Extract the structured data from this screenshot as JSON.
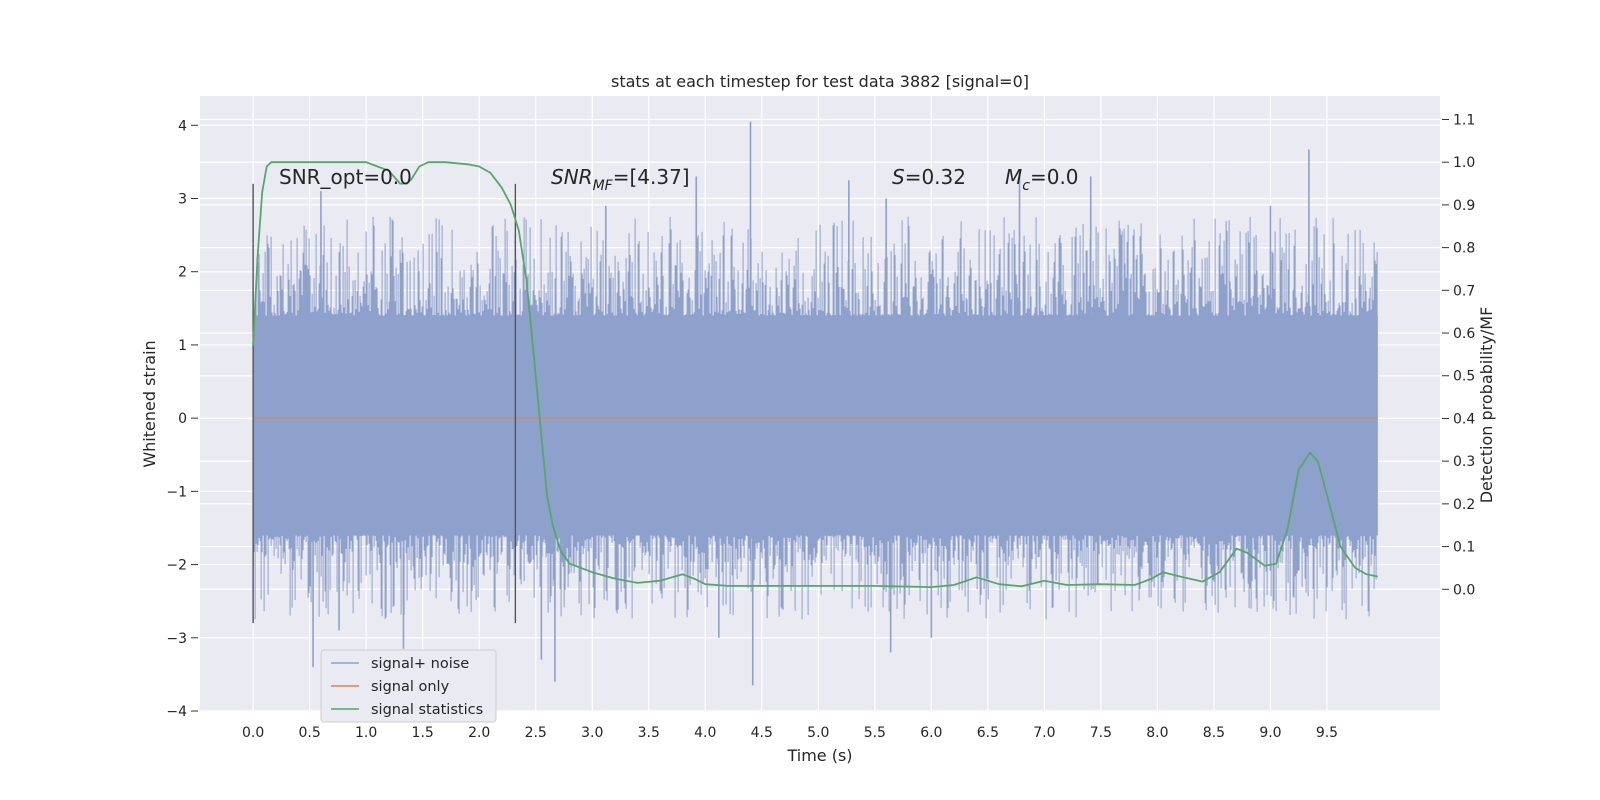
{
  "chart_data": {
    "type": "line",
    "title": "stats at each timestep for test data 3882 [signal=0]",
    "xlabel": "Time (s)",
    "ylabel": "Whitened strain",
    "y2label": "Detection probability/MF",
    "xlim": [
      -0.47,
      10.5
    ],
    "ylim": [
      -4.0,
      4.4
    ],
    "y2lim": [
      -0.285,
      1.155
    ],
    "x_ticks": [
      "0.0",
      "0.5",
      "1.0",
      "1.5",
      "2.0",
      "2.5",
      "3.0",
      "3.5",
      "4.0",
      "4.5",
      "5.0",
      "5.5",
      "6.0",
      "6.5",
      "7.0",
      "7.5",
      "8.0",
      "8.5",
      "9.0",
      "9.5"
    ],
    "y_ticks": [
      "−4",
      "−3",
      "−2",
      "−1",
      "0",
      "1",
      "2",
      "3",
      "4"
    ],
    "y2_ticks": [
      "0.0",
      "0.1",
      "0.2",
      "0.3",
      "0.4",
      "0.5",
      "0.6",
      "0.7",
      "0.8",
      "0.9",
      "1.0",
      "1.1"
    ],
    "grid": true,
    "legend_position": "lower-left",
    "annotations": {
      "snr_opt": "SNR_opt=0.0",
      "snr_mf_sym": "SNR",
      "snr_mf_sub": "MF",
      "snr_mf_val": "=[4.37]",
      "s_sym": "S",
      "s_val": "=0.32",
      "mc_sym": "M",
      "mc_sub": "c",
      "mc_val": "=0.0"
    },
    "vlines": {
      "x": [
        0.0,
        2.32
      ],
      "y_from": -2.8,
      "y_to": 3.2
    },
    "series": [
      {
        "name": "signal+ noise",
        "color": "#8ea0cc",
        "kind": "noise",
        "x_range": [
          0.0,
          9.95
        ],
        "envelope": [
          1.4,
          -1.6
        ],
        "spikes": [
          {
            "x": 4.4,
            "y": 4.05
          },
          {
            "x": 9.34,
            "y": 3.67
          },
          {
            "x": 6.78,
            "y": 3.4
          },
          {
            "x": 3.92,
            "y": 3.3
          },
          {
            "x": 5.27,
            "y": 3.25
          },
          {
            "x": 7.41,
            "y": 3.3
          },
          {
            "x": 5.6,
            "y": 3.0
          },
          {
            "x": 9.0,
            "y": 2.9
          },
          {
            "x": 3.12,
            "y": 2.9
          },
          {
            "x": 0.6,
            "y": 3.1
          },
          {
            "x": 4.42,
            "y": -3.65
          },
          {
            "x": 2.67,
            "y": -3.6
          },
          {
            "x": 2.55,
            "y": -3.3
          },
          {
            "x": 0.53,
            "y": -3.4
          },
          {
            "x": 5.64,
            "y": -3.2
          },
          {
            "x": 1.33,
            "y": -3.15
          },
          {
            "x": 6.0,
            "y": -3.0
          },
          {
            "x": 4.12,
            "y": -3.0
          },
          {
            "x": 0.76,
            "y": -2.9
          }
        ]
      },
      {
        "name": "signal only",
        "color": "#dd8452",
        "values_x": [
          0.0,
          9.95
        ],
        "values_y": [
          0.0,
          0.0
        ]
      },
      {
        "name": "signal statistics",
        "color": "#55a868",
        "axis": "right",
        "x": [
          0.0,
          0.04,
          0.08,
          0.12,
          0.16,
          0.2,
          0.3,
          0.5,
          0.7,
          1.0,
          1.1,
          1.2,
          1.3,
          1.36,
          1.4,
          1.47,
          1.55,
          1.7,
          1.9,
          2.0,
          2.1,
          2.2,
          2.28,
          2.35,
          2.42,
          2.5,
          2.6,
          2.65,
          2.72,
          2.8,
          3.0,
          3.2,
          3.4,
          3.6,
          3.8,
          3.9,
          4.0,
          4.2,
          4.5,
          5.0,
          5.5,
          6.0,
          6.2,
          6.4,
          6.6,
          6.8,
          7.0,
          7.2,
          7.5,
          7.8,
          7.95,
          8.05,
          8.2,
          8.4,
          8.55,
          8.7,
          8.8,
          8.95,
          9.05,
          9.15,
          9.25,
          9.35,
          9.42,
          9.5,
          9.62,
          9.75,
          9.85,
          9.95
        ],
        "y": [
          0.57,
          0.78,
          0.93,
          0.99,
          1.0,
          1.0,
          1.0,
          1.0,
          1.0,
          1.0,
          0.99,
          0.98,
          0.95,
          0.95,
          0.96,
          0.99,
          1.0,
          1.0,
          0.995,
          0.99,
          0.975,
          0.94,
          0.9,
          0.84,
          0.72,
          0.5,
          0.22,
          0.15,
          0.09,
          0.06,
          0.04,
          0.025,
          0.015,
          0.02,
          0.035,
          0.025,
          0.012,
          0.008,
          0.008,
          0.008,
          0.008,
          0.005,
          0.01,
          0.028,
          0.012,
          0.007,
          0.02,
          0.01,
          0.012,
          0.01,
          0.025,
          0.04,
          0.03,
          0.018,
          0.04,
          0.095,
          0.085,
          0.055,
          0.06,
          0.14,
          0.28,
          0.32,
          0.3,
          0.22,
          0.1,
          0.05,
          0.035,
          0.03
        ]
      }
    ]
  }
}
